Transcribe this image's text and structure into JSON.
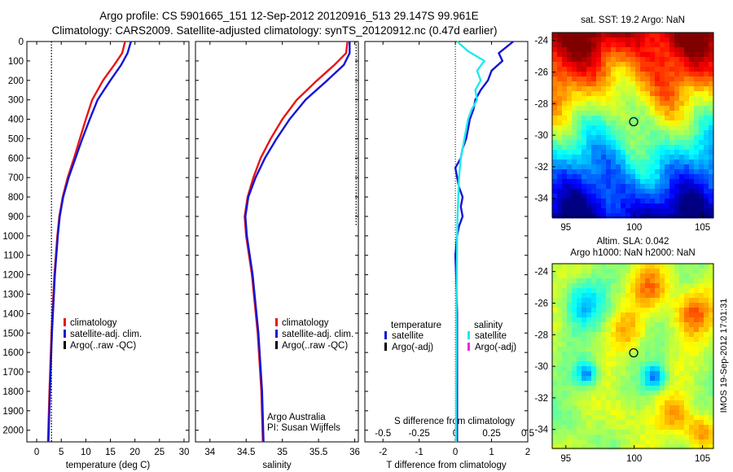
{
  "header": {
    "line1": "Argo profile: CS 5901665_151 12-Sep-2012 20120916_513 29.147S 99.961E",
    "line2": "Climatology: CARS2009. Satellite-adjusted climatology: synTS_20120912.nc (0.47d earlier)"
  },
  "credit": {
    "text": "IMOS 19-Sep-2012 17:01:31"
  },
  "colors": {
    "climatology": "#e81515",
    "satellite_adj": "#1414d6",
    "argo": "#000000",
    "sal_satellite": "#22e8ee",
    "sal_argo": "#ee22ee"
  },
  "chart_data": [
    {
      "id": "temperature",
      "type": "line",
      "xlabel": "temperature (deg C)",
      "ylabel": "",
      "xlim": [
        -2,
        31
      ],
      "ylim": [
        0,
        2060
      ],
      "x_ticks": [
        0,
        5,
        10,
        15,
        20,
        25,
        30
      ],
      "y_ticks": [
        0,
        100,
        200,
        300,
        400,
        500,
        600,
        700,
        800,
        900,
        1000,
        1100,
        1200,
        1300,
        1400,
        1500,
        1600,
        1700,
        1800,
        1900,
        2000
      ],
      "y_reversed": true,
      "legend": [
        "climatology",
        "satellite-adj. clim.",
        "Argo(..raw -QC)"
      ],
      "legend_position": "lower-right",
      "series": [
        {
          "name": "climatology",
          "color_key": "climatology",
          "pressure": [
            0,
            60,
            120,
            200,
            300,
            400,
            500,
            600,
            700,
            800,
            900,
            1000,
            1200,
            1500,
            1800,
            2060
          ],
          "values": [
            18.0,
            17.4,
            15.8,
            13.5,
            11.3,
            10.0,
            8.8,
            7.6,
            6.3,
            5.3,
            4.6,
            4.2,
            3.6,
            3.0,
            2.6,
            2.3
          ]
        },
        {
          "name": "satellite-adj. clim.",
          "color_key": "satellite_adj",
          "pressure": [
            0,
            60,
            120,
            200,
            300,
            400,
            500,
            600,
            700,
            800,
            900,
            1000,
            1200,
            1500,
            1800,
            2060
          ],
          "values": [
            19.2,
            18.5,
            17.2,
            15.0,
            12.4,
            10.8,
            9.3,
            7.9,
            6.5,
            5.4,
            4.7,
            4.3,
            3.7,
            3.1,
            2.7,
            2.4
          ]
        },
        {
          "name": "Argo(..raw -QC)",
          "color_key": "argo",
          "style": "dotted",
          "pressure": [
            0,
            2060
          ],
          "values": [
            3.0,
            3.0
          ]
        }
      ]
    },
    {
      "id": "salinity",
      "type": "line",
      "xlabel": "salinity",
      "ylabel": "",
      "xlim": [
        33.8,
        36.05
      ],
      "ylim": [
        0,
        2060
      ],
      "x_ticks": [
        34,
        34.5,
        35,
        35.5,
        36
      ],
      "y_reversed": true,
      "legend": [
        "climatology",
        "satellite-adj. clim.",
        "Argo(..raw -QC)"
      ],
      "legend_position": "lower-right",
      "annotation": [
        "Argo Australia",
        "PI: Susan Wijffels"
      ],
      "series": [
        {
          "name": "climatology",
          "color_key": "climatology",
          "pressure": [
            0,
            60,
            120,
            200,
            300,
            400,
            500,
            600,
            700,
            800,
            900,
            1000,
            1200,
            1500,
            1800,
            2060
          ],
          "values": [
            35.9,
            35.88,
            35.72,
            35.48,
            35.2,
            35.0,
            34.84,
            34.7,
            34.6,
            34.52,
            34.48,
            34.5,
            34.58,
            34.66,
            34.71,
            34.73
          ]
        },
        {
          "name": "satellite-adj. clim.",
          "color_key": "satellite_adj",
          "pressure": [
            0,
            60,
            120,
            200,
            300,
            400,
            500,
            600,
            700,
            800,
            900,
            1000,
            1200,
            1500,
            1800,
            2060
          ],
          "values": [
            35.93,
            35.93,
            35.85,
            35.62,
            35.32,
            35.1,
            34.92,
            34.76,
            34.63,
            34.53,
            34.49,
            34.51,
            34.59,
            34.67,
            34.72,
            34.74
          ]
        },
        {
          "name": "Argo(..raw -QC)",
          "color_key": "argo",
          "style": "dotted",
          "pressure": [
            0,
            950
          ],
          "values": [
            36.02,
            36.02
          ]
        }
      ]
    },
    {
      "id": "difference",
      "type": "line",
      "xlabel": "T difference from climatology",
      "top_axis_label": "S difference from climatology",
      "xlim": [
        -2.5,
        2.0
      ],
      "ylim": [
        0,
        2060
      ],
      "x_ticks": [
        -2,
        -1,
        0,
        1,
        2
      ],
      "top_ticks": [
        "-0.5",
        "-0.25",
        "0",
        "0.25",
        "0.5"
      ],
      "y_reversed": true,
      "legend_groups": [
        {
          "title": "temperature",
          "items": [
            "satellite",
            "Argo(-adj)"
          ]
        },
        {
          "title": "salinity",
          "items": [
            "satellite",
            "Argo(-adj)"
          ]
        }
      ],
      "legend_position": "lower",
      "series": [
        {
          "name": "temperature satellite",
          "color_key": "satellite_adj",
          "pressure": [
            0,
            30,
            60,
            100,
            150,
            200,
            250,
            300,
            350,
            400,
            450,
            500,
            550,
            600,
            650,
            700,
            750,
            800,
            850,
            900,
            950,
            1000,
            1100,
            1200,
            1400,
            1600,
            1800,
            2060
          ],
          "values": [
            1.6,
            1.4,
            1.2,
            1.3,
            1.0,
            0.9,
            0.7,
            0.55,
            0.5,
            0.4,
            0.35,
            0.3,
            0.2,
            0.15,
            0.0,
            0.05,
            0.1,
            0.2,
            0.15,
            0.2,
            0.1,
            0.05,
            0.0,
            0.02,
            0.05,
            0.05,
            0.05,
            0.05
          ]
        },
        {
          "name": "salinity satellite",
          "color_key": "sal_satellite",
          "pressure": [
            0,
            50,
            100,
            150,
            200,
            250,
            300,
            350,
            400,
            500,
            600,
            700,
            800,
            900,
            1000,
            1200,
            1400,
            1600,
            1800,
            2060
          ],
          "values": [
            0.05,
            0.35,
            0.8,
            0.6,
            0.7,
            0.55,
            0.6,
            0.45,
            0.35,
            0.25,
            0.15,
            0.1,
            0.08,
            0.06,
            0.05,
            0.04,
            0.03,
            0.03,
            0.02,
            0.02
          ]
        }
      ]
    },
    {
      "id": "sst_map",
      "type": "heatmap",
      "title": "sat. SST: 19.2  Argo: NaN",
      "x_ticks": [
        95,
        100,
        105
      ],
      "y_ticks": [
        -24,
        -26,
        -28,
        -30,
        -32,
        -34
      ],
      "xlim": [
        94,
        105.8
      ],
      "ylim": [
        -35.2,
        -23.5
      ],
      "marker": {
        "lon": 99.961,
        "lat": -29.147
      },
      "colormap": "jet",
      "grid": false
    },
    {
      "id": "sla_map",
      "type": "heatmap",
      "title_line1": "Altim. SLA: 0.042",
      "title_line2": "Argo h1000: NaN h2000: NaN",
      "x_ticks": [
        95,
        100,
        105
      ],
      "y_ticks": [
        -24,
        -26,
        -28,
        -30,
        -32,
        -34
      ],
      "xlim": [
        94,
        105.8
      ],
      "ylim": [
        -35.2,
        -23.5
      ],
      "marker": {
        "lon": 99.961,
        "lat": -29.147
      },
      "colormap": "jet",
      "grid": false
    }
  ]
}
